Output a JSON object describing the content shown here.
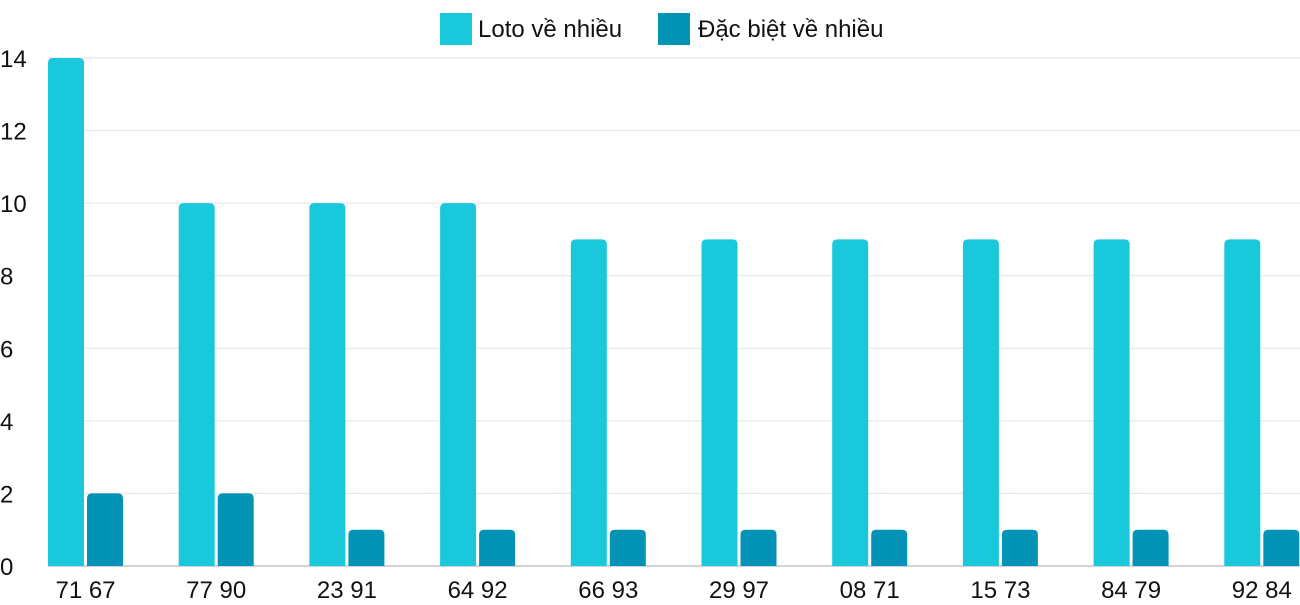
{
  "chart_data": {
    "type": "bar",
    "categories": [
      "71 67",
      "77 90",
      "23 91",
      "64 92",
      "66 93",
      "29 97",
      "08 71",
      "15 73",
      "84 79",
      "92 84"
    ],
    "series": [
      {
        "name": "Loto về nhiều",
        "color": "#1ac8db",
        "values": [
          14,
          10,
          10,
          10,
          9,
          9,
          9,
          9,
          9,
          9
        ]
      },
      {
        "name": "Đặc biệt về nhiều",
        "color": "#0393b7",
        "values": [
          2,
          2,
          1,
          1,
          1,
          1,
          1,
          1,
          1,
          1
        ]
      }
    ],
    "yticks": [
      "0",
      "2",
      "4",
      "6",
      "8",
      "10",
      "12",
      "14"
    ],
    "ylim": [
      0,
      14
    ],
    "grid": true,
    "legend": "top-center",
    "title": "",
    "xlabel": "",
    "ylabel": ""
  }
}
